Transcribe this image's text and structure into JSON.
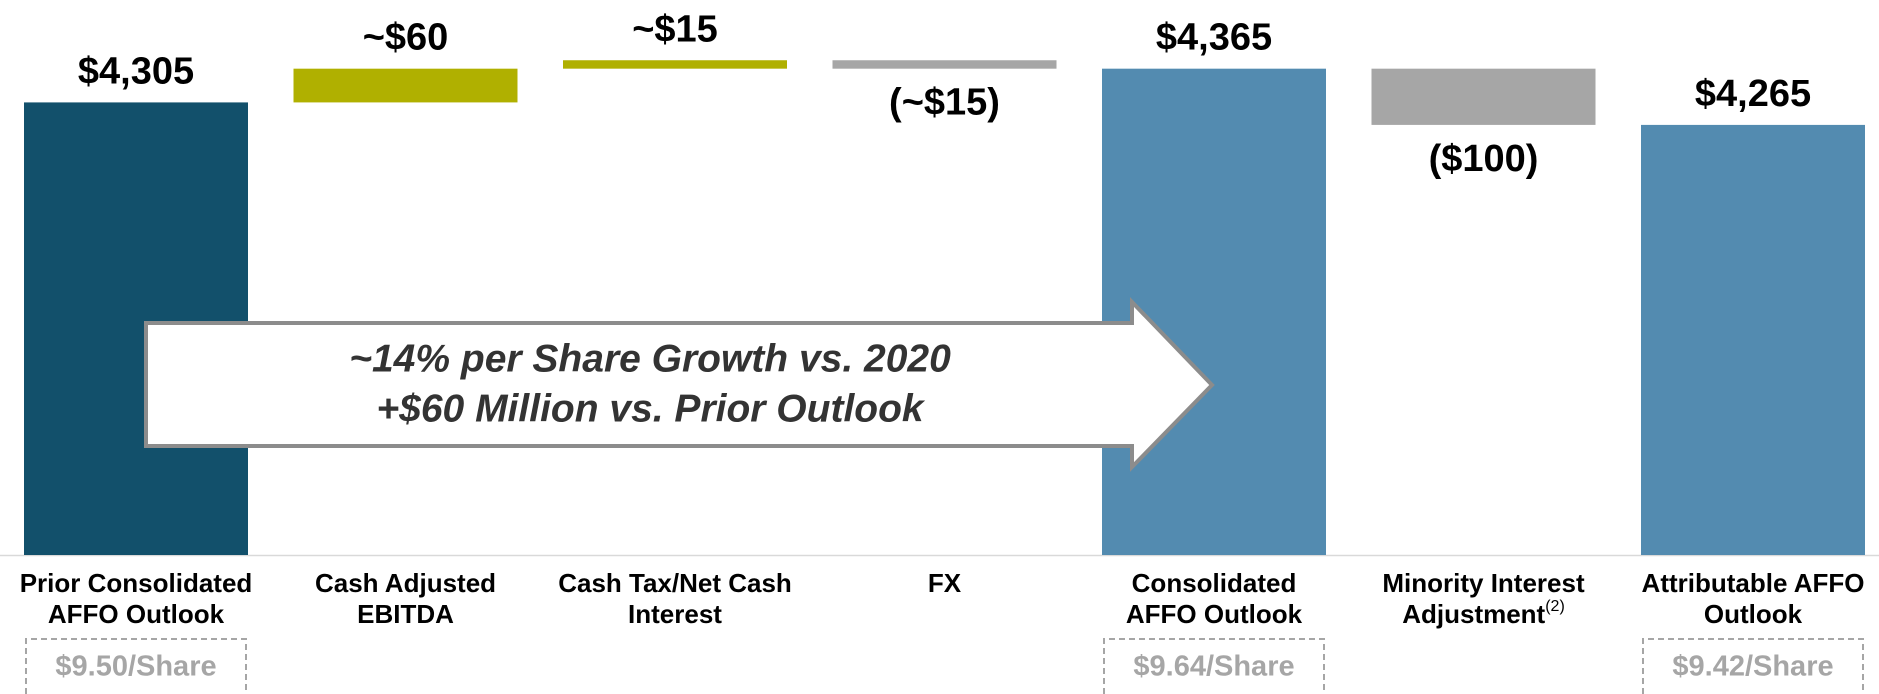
{
  "chart_data": {
    "type": "waterfall",
    "categories": [
      [
        "Prior Consolidated",
        "AFFO Outlook"
      ],
      [
        "Cash Adjusted",
        "EBITDA"
      ],
      [
        "Cash Tax/Net Cash",
        "Interest"
      ],
      [
        "FX"
      ],
      [
        "Consolidated",
        "AFFO Outlook"
      ],
      [
        "Minority Interest",
        "Adjustment"
      ],
      [
        "Attributable AFFO",
        "Outlook"
      ]
    ],
    "category_footnotes": {
      "5": "(2)"
    },
    "values": [
      4305,
      60,
      15,
      -15,
      4365,
      -100,
      4265
    ],
    "value_labels": [
      "$4,305",
      "~$60",
      "~$15",
      "(~$15)",
      "$4,365",
      "($100)",
      "$4,265"
    ],
    "measures": [
      "absolute",
      "relative",
      "relative",
      "relative",
      "absolute",
      "relative",
      "absolute"
    ],
    "colors": [
      "#12506b",
      "#b0b000",
      "#b0b000",
      "#a6a6a6",
      "#538bb0",
      "#a6a6a6",
      "#538bb0"
    ],
    "per_share_labels": {
      "0": "$9.50/Share",
      "4": "$9.64/Share",
      "6": "$9.42/Share"
    },
    "annotations": [
      "~14% per Share Growth vs. 2020",
      "+$60 Million vs. Prior Outlook"
    ],
    "ylim": [
      3500,
      4400
    ]
  }
}
